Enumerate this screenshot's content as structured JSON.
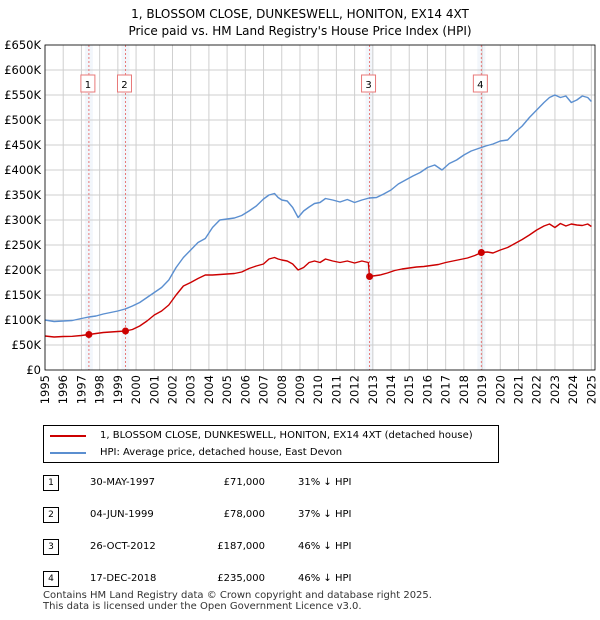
{
  "header": {
    "title_line1": "1, BLOSSOM CLOSE, DUNKESWELL, HONITON, EX14 4XT",
    "title_line2": "Price paid vs. HM Land Registry's House Price Index (HPI)"
  },
  "legend": {
    "red_label": "1, BLOSSOM CLOSE, DUNKESWELL, HONITON, EX14 4XT (detached house)",
    "blue_label": "HPI: Average price, detached house, East Devon"
  },
  "sales": [
    {
      "num": "1",
      "date": "30-MAY-1997",
      "price": "£71,000",
      "hpi": "31% ↓ HPI"
    },
    {
      "num": "2",
      "date": "04-JUN-1999",
      "price": "£78,000",
      "hpi": "37% ↓ HPI"
    },
    {
      "num": "3",
      "date": "26-OCT-2012",
      "price": "£187,000",
      "hpi": "46% ↓ HPI"
    },
    {
      "num": "4",
      "date": "17-DEC-2018",
      "price": "£235,000",
      "hpi": "46% ↓ HPI"
    }
  ],
  "footer": {
    "line1": "Contains HM Land Registry data © Crown copyright and database right 2025.",
    "line2": "This data is licensed under the Open Government Licence v3.0."
  },
  "chart_data": {
    "type": "line",
    "title": "1, BLOSSOM CLOSE, DUNKESWELL, HONITON, EX14 4XT",
    "subtitle": "Price paid vs. HM Land Registry's House Price Index (HPI)",
    "xlabel": "",
    "ylabel": "",
    "xlim": [
      1995,
      2025.2
    ],
    "ylim": [
      0,
      650000
    ],
    "grid": true,
    "legend_position": "bottom",
    "x_ticks": [
      "1995",
      "1996",
      "1997",
      "1998",
      "1999",
      "2000",
      "2001",
      "2002",
      "2003",
      "2004",
      "2005",
      "2006",
      "2007",
      "2008",
      "2009",
      "2010",
      "2011",
      "2012",
      "2013",
      "2014",
      "2015",
      "2016",
      "2017",
      "2018",
      "2019",
      "2020",
      "2021",
      "2022",
      "2023",
      "2024",
      "2025"
    ],
    "y_ticks": [
      {
        "value": 0,
        "label": "£0"
      },
      {
        "value": 50000,
        "label": "£50K"
      },
      {
        "value": 100000,
        "label": "£100K"
      },
      {
        "value": 150000,
        "label": "£150K"
      },
      {
        "value": 200000,
        "label": "£200K"
      },
      {
        "value": 250000,
        "label": "£250K"
      },
      {
        "value": 300000,
        "label": "£300K"
      },
      {
        "value": 350000,
        "label": "£350K"
      },
      {
        "value": 400000,
        "label": "£400K"
      },
      {
        "value": 450000,
        "label": "£450K"
      },
      {
        "value": 500000,
        "label": "£500K"
      },
      {
        "value": 550000,
        "label": "£550K"
      },
      {
        "value": 600000,
        "label": "£600K"
      },
      {
        "value": 650000,
        "label": "£650K"
      }
    ],
    "series": [
      {
        "name": "HPI: Average price, detached house, East Devon",
        "color": "#5b8fd0",
        "x": [
          1995.0,
          1995.5,
          1996.0,
          1996.5,
          1997.0,
          1997.4,
          1997.8,
          1998.2,
          1998.6,
          1999.0,
          1999.4,
          1999.8,
          2000.2,
          2000.6,
          2001.0,
          2001.4,
          2001.8,
          2002.2,
          2002.6,
          2003.0,
          2003.4,
          2003.8,
          2004.2,
          2004.6,
          2005.0,
          2005.4,
          2005.8,
          2006.2,
          2006.6,
          2007.0,
          2007.3,
          2007.6,
          2007.8,
          2008.0,
          2008.3,
          2008.6,
          2008.9,
          2009.2,
          2009.5,
          2009.8,
          2010.1,
          2010.4,
          2010.8,
          2011.2,
          2011.6,
          2012.0,
          2012.4,
          2012.8,
          2013.2,
          2013.6,
          2014.0,
          2014.4,
          2014.8,
          2015.2,
          2015.6,
          2016.0,
          2016.4,
          2016.8,
          2017.2,
          2017.6,
          2018.0,
          2018.4,
          2018.8,
          2019.2,
          2019.6,
          2020.0,
          2020.4,
          2020.8,
          2021.2,
          2021.6,
          2022.0,
          2022.4,
          2022.7,
          2023.0,
          2023.3,
          2023.6,
          2023.9,
          2024.2,
          2024.5,
          2024.8,
          2025.0
        ],
        "values": [
          100000,
          97000,
          98000,
          99000,
          103000,
          106000,
          108000,
          112000,
          115000,
          118000,
          122000,
          128000,
          135000,
          145000,
          155000,
          165000,
          180000,
          205000,
          225000,
          240000,
          255000,
          263000,
          285000,
          300000,
          302000,
          304000,
          309000,
          318000,
          328000,
          342000,
          350000,
          353000,
          345000,
          340000,
          338000,
          325000,
          305000,
          318000,
          326000,
          333000,
          335000,
          343000,
          340000,
          336000,
          341000,
          335000,
          340000,
          344000,
          345000,
          352000,
          360000,
          372000,
          380000,
          388000,
          395000,
          405000,
          410000,
          400000,
          413000,
          420000,
          430000,
          438000,
          443000,
          448000,
          452000,
          458000,
          460000,
          475000,
          488000,
          505000,
          520000,
          535000,
          545000,
          550000,
          545000,
          548000,
          535000,
          540000,
          548000,
          545000,
          537000
        ]
      },
      {
        "name": "1, BLOSSOM CLOSE, DUNKESWELL, HONITON, EX14 4XT (detached house)",
        "color": "#cc0000",
        "x": [
          1995.0,
          1995.5,
          1996.0,
          1996.5,
          1997.0,
          1997.41,
          1997.8,
          1998.2,
          1998.6,
          1999.0,
          1999.42,
          1999.8,
          2000.2,
          2000.6,
          2001.0,
          2001.4,
          2001.8,
          2002.2,
          2002.6,
          2003.0,
          2003.4,
          2003.8,
          2004.2,
          2004.6,
          2005.0,
          2005.4,
          2005.8,
          2006.2,
          2006.6,
          2007.0,
          2007.3,
          2007.6,
          2007.8,
          2008.0,
          2008.3,
          2008.6,
          2008.9,
          2009.2,
          2009.5,
          2009.8,
          2010.1,
          2010.4,
          2010.8,
          2011.2,
          2011.6,
          2012.0,
          2012.4,
          2012.75,
          2012.82,
          2013.0,
          2013.4,
          2013.8,
          2014.2,
          2014.6,
          2015.0,
          2015.4,
          2015.8,
          2016.2,
          2016.6,
          2017.0,
          2017.4,
          2017.8,
          2018.2,
          2018.6,
          2018.96,
          2019.3,
          2019.6,
          2020.0,
          2020.4,
          2020.8,
          2021.2,
          2021.6,
          2022.0,
          2022.4,
          2022.7,
          2023.0,
          2023.3,
          2023.6,
          2023.9,
          2024.2,
          2024.5,
          2024.8,
          2025.0
        ],
        "values": [
          68000,
          66000,
          67000,
          67500,
          69000,
          71000,
          73000,
          75000,
          76000,
          77000,
          78000,
          81000,
          88000,
          98000,
          110000,
          118000,
          130000,
          150000,
          168000,
          175000,
          183000,
          190000,
          190000,
          191000,
          192000,
          193000,
          196000,
          203000,
          208000,
          212000,
          222000,
          225000,
          222000,
          220000,
          218000,
          212000,
          200000,
          205000,
          215000,
          218000,
          215000,
          222000,
          218000,
          215000,
          218000,
          214000,
          218000,
          215000,
          187000,
          188000,
          190000,
          194000,
          199000,
          202000,
          204000,
          206000,
          207000,
          209000,
          211000,
          215000,
          218000,
          221000,
          224000,
          229000,
          235000,
          236000,
          234000,
          240000,
          245000,
          253000,
          261000,
          270000,
          280000,
          288000,
          292000,
          285000,
          293000,
          288000,
          292000,
          290000,
          289000,
          292000,
          287000
        ]
      }
    ],
    "sales": [
      {
        "label": "1",
        "x": 1997.41,
        "value": 71000
      },
      {
        "label": "2",
        "x": 1999.42,
        "value": 78000
      },
      {
        "label": "3",
        "x": 2012.82,
        "value": 187000
      },
      {
        "label": "4",
        "x": 2018.96,
        "value": 235000
      }
    ],
    "colors": {
      "sale_line": "#e87a7a",
      "sale_band": "#e8eef8",
      "grid": "#cfcfcf"
    }
  }
}
